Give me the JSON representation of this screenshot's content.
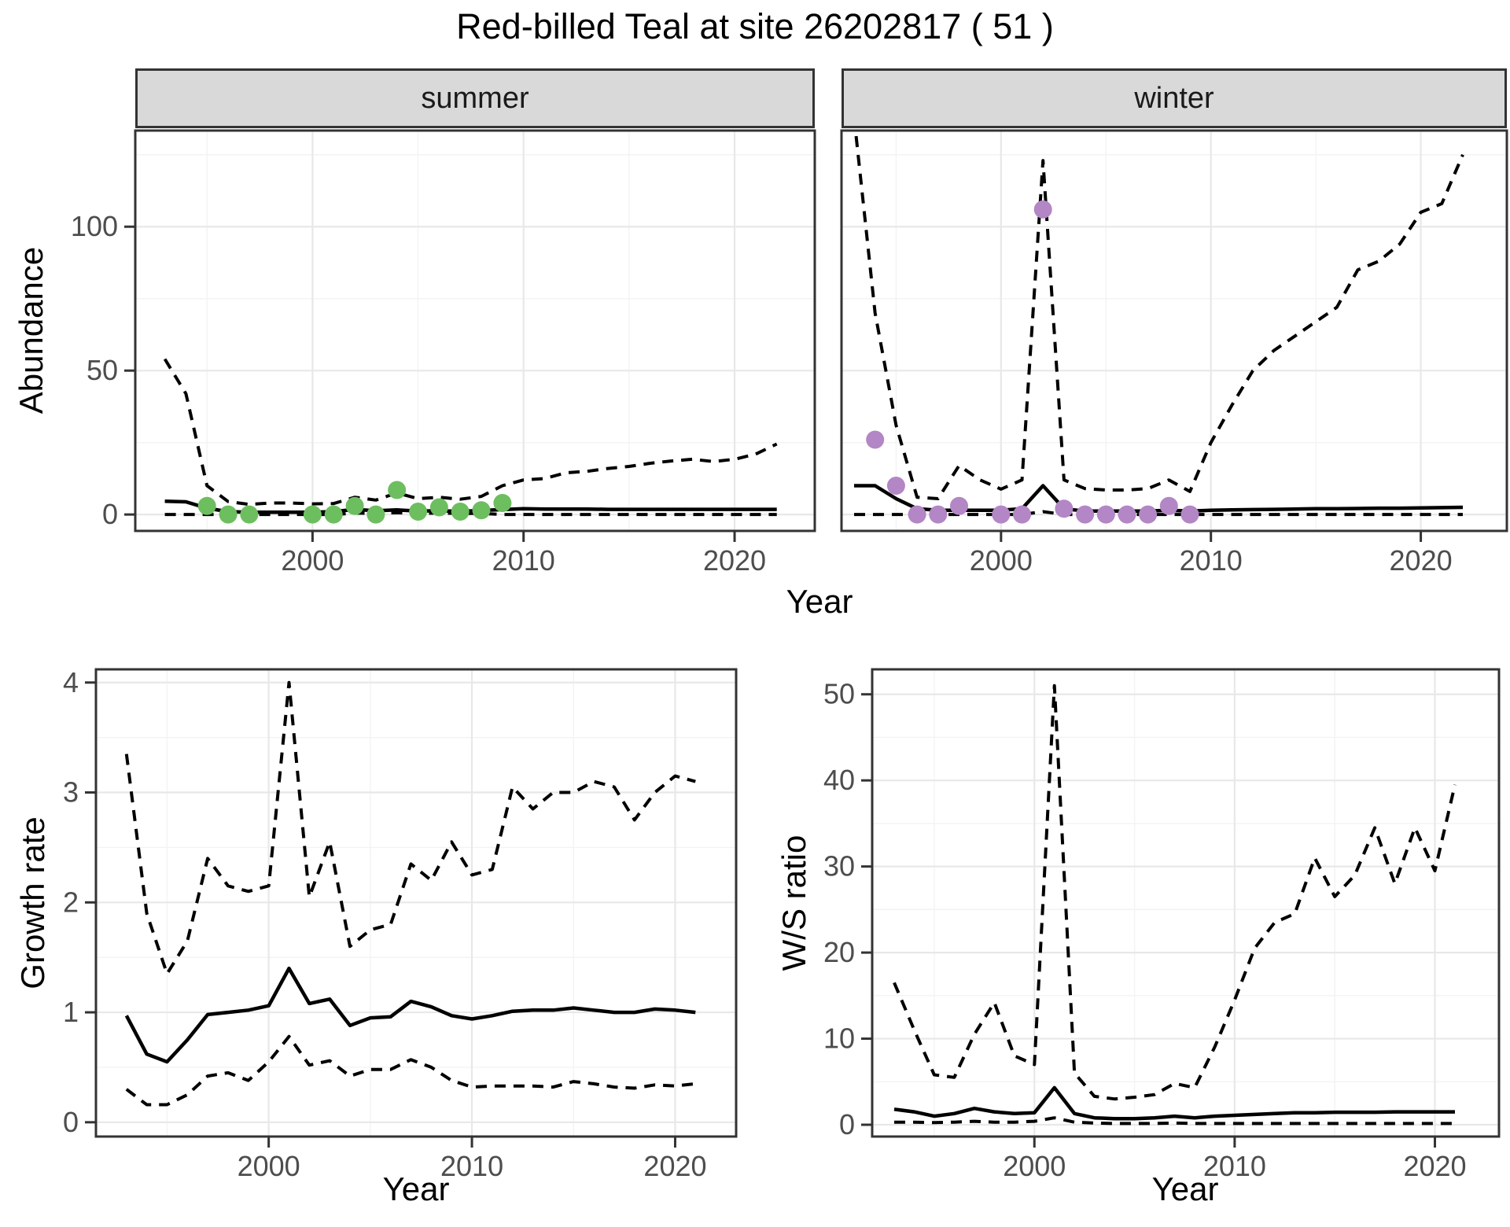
{
  "title": "Red-billed Teal at site 26202817 ( 51 )",
  "colors": {
    "summer_points": "#6dbe5f",
    "winter_points": "#b386c5",
    "line": "#000000",
    "strip_bg": "#d9d9d9",
    "strip_text": "#1a1a1a",
    "panel_border": "#333333",
    "grid_major": "#e8e8e8",
    "grid_minor": "#f3f3f3",
    "tick_text": "#4d4d4d",
    "background": "#ffffff"
  },
  "chart_data": [
    {
      "id": "abundance_summer",
      "type": "line",
      "facet": "summer",
      "xlabel": "Year",
      "ylabel": "Abundance",
      "xlim": [
        1991.6,
        2023.8
      ],
      "ylim": [
        -5.7,
        133.4
      ],
      "xticks": [
        2000,
        2010,
        2020
      ],
      "xticks_minor": [
        1995,
        2005,
        2015
      ],
      "yticks": [
        0,
        50,
        100
      ],
      "yticks_minor": [
        25,
        75,
        125
      ],
      "grid": true,
      "show_y_tick_labels": true,
      "series": [
        {
          "name": "upper_ci",
          "style": "dashed",
          "x": [
            1993,
            1994,
            1995,
            1996,
            1997,
            1998,
            1999,
            2000,
            2001,
            2002,
            2003,
            2004,
            2005,
            2006,
            2007,
            2008,
            2009,
            2010,
            2011,
            2012,
            2013,
            2014,
            2015,
            2016,
            2017,
            2018,
            2019,
            2020,
            2021,
            2022
          ],
          "y": [
            54,
            42,
            10,
            4.5,
            3.5,
            4,
            4,
            3.7,
            3.8,
            6,
            5,
            7.5,
            5.5,
            6,
            5.3,
            6.3,
            10,
            12,
            12.5,
            14.5,
            15,
            16,
            16.7,
            17.8,
            18.6,
            19.2,
            18.4,
            19.2,
            21,
            24.5
          ]
        },
        {
          "name": "median",
          "style": "solid",
          "x": [
            1993,
            1994,
            1995,
            1996,
            1997,
            1998,
            1999,
            2000,
            2001,
            2002,
            2003,
            2004,
            2005,
            2006,
            2007,
            2008,
            2009,
            2010,
            2011,
            2012,
            2013,
            2014,
            2015,
            2016,
            2017,
            2018,
            2019,
            2020,
            2021,
            2022
          ],
          "y": [
            4.6,
            4.4,
            2.2,
            1,
            0.8,
            0.8,
            0.8,
            0.8,
            1,
            1.8,
            1.3,
            1.6,
            1.2,
            1.3,
            1.1,
            1.4,
            1.7,
            2,
            1.9,
            1.9,
            1.9,
            1.8,
            1.8,
            1.8,
            1.8,
            1.8,
            1.8,
            1.8,
            1.8,
            1.8
          ]
        },
        {
          "name": "lower_ci",
          "style": "dashed",
          "x": [
            1993,
            1994,
            1995,
            1996,
            1997,
            1998,
            1999,
            2000,
            2001,
            2002,
            2003,
            2004,
            2005,
            2006,
            2007,
            2008,
            2009,
            2010,
            2011,
            2012,
            2013,
            2014,
            2015,
            2016,
            2017,
            2018,
            2019,
            2020,
            2021,
            2022
          ],
          "y": [
            0,
            0,
            0,
            0,
            0,
            0,
            0,
            0,
            0,
            0.5,
            0.4,
            0.6,
            0.4,
            0.5,
            0.4,
            0.4,
            0,
            0,
            0,
            0,
            0,
            0,
            0,
            0,
            0,
            0,
            0,
            0,
            0,
            0
          ]
        },
        {
          "name": "observed_counts",
          "style": "points",
          "color": "#6dbe5f",
          "x": [
            1995,
            1996,
            1997,
            2000,
            2001,
            2002,
            2003,
            2004,
            2005,
            2006,
            2007,
            2008,
            2009
          ],
          "y": [
            3,
            0,
            0,
            0,
            0,
            3,
            0,
            8.5,
            1,
            2.5,
            1,
            1.5,
            4
          ]
        }
      ]
    },
    {
      "id": "abundance_winter",
      "type": "line",
      "facet": "winter",
      "xlabel": "Year",
      "ylabel": "Abundance",
      "xlim": [
        1992.4,
        2024.1
      ],
      "ylim": [
        -5.7,
        133.4
      ],
      "xticks": [
        2000,
        2010,
        2020
      ],
      "xticks_minor": [
        1995,
        2005,
        2015
      ],
      "yticks": [
        0,
        50,
        100
      ],
      "yticks_minor": [
        25,
        75,
        125
      ],
      "grid": true,
      "show_y_tick_labels": false,
      "series": [
        {
          "name": "upper_ci",
          "style": "dashed",
          "x": [
            1993,
            1994,
            1995,
            1996,
            1997,
            1998,
            1999,
            2000,
            2001,
            2002,
            2003,
            2004,
            2005,
            2006,
            2007,
            2008,
            2009,
            2010,
            2011,
            2012,
            2013,
            2014,
            2015,
            2016,
            2017,
            2018,
            2019,
            2020,
            2021,
            2022
          ],
          "y": [
            138,
            70,
            31,
            6,
            5.5,
            17,
            12,
            8.8,
            12,
            123,
            12,
            9,
            8.5,
            8.5,
            9,
            12,
            8,
            25,
            38,
            50,
            57,
            62,
            67,
            72,
            85,
            88,
            94,
            105,
            108,
            125
          ]
        },
        {
          "name": "median",
          "style": "solid",
          "x": [
            1993,
            1994,
            1995,
            1996,
            1997,
            1998,
            1999,
            2000,
            2001,
            2002,
            2003,
            2004,
            2005,
            2006,
            2007,
            2008,
            2009,
            2010,
            2011,
            2012,
            2013,
            2014,
            2015,
            2016,
            2017,
            2018,
            2019,
            2020,
            2021,
            2022
          ],
          "y": [
            10,
            10,
            5.5,
            2,
            1.5,
            1.5,
            1.5,
            1.5,
            2,
            10,
            2,
            1.2,
            1.2,
            1.2,
            1.2,
            1.5,
            1.2,
            1.5,
            1.6,
            1.7,
            1.8,
            1.9,
            2,
            2,
            2.1,
            2.2,
            2.2,
            2.3,
            2.4,
            2.5
          ]
        },
        {
          "name": "lower_ci",
          "style": "dashed",
          "x": [
            1993,
            1994,
            1995,
            1996,
            1997,
            1998,
            1999,
            2000,
            2001,
            2002,
            2003,
            2004,
            2005,
            2006,
            2007,
            2008,
            2009,
            2010,
            2011,
            2012,
            2013,
            2014,
            2015,
            2016,
            2017,
            2018,
            2019,
            2020,
            2021,
            2022
          ],
          "y": [
            0,
            0,
            0,
            0,
            0,
            0,
            0,
            0,
            0,
            1,
            0,
            0,
            0,
            0,
            0,
            0,
            0,
            0,
            0,
            0,
            0,
            0,
            0,
            0,
            0,
            0,
            0,
            0,
            0,
            0
          ]
        },
        {
          "name": "observed_counts",
          "style": "points",
          "color": "#b386c5",
          "x": [
            1994,
            1995,
            1996,
            1997,
            1998,
            2000,
            2001,
            2002,
            2003,
            2004,
            2005,
            2006,
            2007,
            2008,
            2009
          ],
          "y": [
            26,
            10,
            0,
            0,
            3,
            0,
            0,
            106,
            2,
            0,
            0,
            0,
            0,
            3,
            0
          ]
        }
      ]
    },
    {
      "id": "growth_rate",
      "type": "line",
      "facet": "",
      "xlabel": "Year",
      "ylabel": "Growth rate",
      "xlim": [
        1991.5,
        2023.0
      ],
      "ylim": [
        -0.13,
        4.12
      ],
      "xticks": [
        2000,
        2010,
        2020
      ],
      "xticks_minor": [
        1995,
        2005,
        2015
      ],
      "yticks": [
        0,
        1,
        2,
        3,
        4
      ],
      "yticks_minor": [
        0.5,
        1.5,
        2.5,
        3.5
      ],
      "grid": true,
      "show_y_tick_labels": true,
      "series": [
        {
          "name": "upper_ci",
          "style": "dashed",
          "x": [
            1993,
            1994,
            1995,
            1996,
            1997,
            1998,
            1999,
            2000,
            2001,
            2002,
            2003,
            2004,
            2005,
            2006,
            2007,
            2008,
            2009,
            2010,
            2011,
            2012,
            2013,
            2014,
            2015,
            2016,
            2017,
            2018,
            2019,
            2020,
            2021
          ],
          "y": [
            3.35,
            1.9,
            1.35,
            1.65,
            2.4,
            2.15,
            2.1,
            2.15,
            4.0,
            2.05,
            2.55,
            1.6,
            1.75,
            1.8,
            2.35,
            2.2,
            2.55,
            2.25,
            2.3,
            3.05,
            2.85,
            3.0,
            3.0,
            3.1,
            3.05,
            2.75,
            3.0,
            3.15,
            3.1
          ]
        },
        {
          "name": "median",
          "style": "solid",
          "x": [
            1993,
            1994,
            1995,
            1996,
            1997,
            1998,
            1999,
            2000,
            2001,
            2002,
            2003,
            2004,
            2005,
            2006,
            2007,
            2008,
            2009,
            2010,
            2011,
            2012,
            2013,
            2014,
            2015,
            2016,
            2017,
            2018,
            2019,
            2020,
            2021
          ],
          "y": [
            0.97,
            0.62,
            0.55,
            0.75,
            0.98,
            1.0,
            1.02,
            1.06,
            1.4,
            1.08,
            1.12,
            0.88,
            0.95,
            0.96,
            1.1,
            1.05,
            0.97,
            0.94,
            0.97,
            1.01,
            1.02,
            1.02,
            1.04,
            1.02,
            1.0,
            1.0,
            1.03,
            1.02,
            1.0
          ]
        },
        {
          "name": "lower_ci",
          "style": "dashed",
          "x": [
            1993,
            1994,
            1995,
            1996,
            1997,
            1998,
            1999,
            2000,
            2001,
            2002,
            2003,
            2004,
            2005,
            2006,
            2007,
            2008,
            2009,
            2010,
            2011,
            2012,
            2013,
            2014,
            2015,
            2016,
            2017,
            2018,
            2019,
            2020,
            2021
          ],
          "y": [
            0.3,
            0.16,
            0.16,
            0.25,
            0.42,
            0.45,
            0.38,
            0.55,
            0.78,
            0.52,
            0.56,
            0.42,
            0.48,
            0.48,
            0.57,
            0.5,
            0.38,
            0.32,
            0.33,
            0.33,
            0.33,
            0.32,
            0.37,
            0.35,
            0.32,
            0.31,
            0.34,
            0.33,
            0.35
          ]
        }
      ]
    },
    {
      "id": "ws_ratio",
      "type": "line",
      "facet": "",
      "xlabel": "Year",
      "ylabel": "W/S ratio",
      "xlim": [
        1991.9,
        2023.2
      ],
      "ylim": [
        -1.37,
        52.9
      ],
      "xticks": [
        2000,
        2010,
        2020
      ],
      "xticks_minor": [
        1995,
        2005,
        2015
      ],
      "yticks": [
        0,
        10,
        20,
        30,
        40,
        50
      ],
      "yticks_minor": [
        5,
        15,
        25,
        35,
        45
      ],
      "grid": true,
      "show_y_tick_labels": true,
      "series": [
        {
          "name": "upper_ci",
          "style": "dashed",
          "x": [
            1993,
            1994,
            1995,
            1996,
            1997,
            1998,
            1999,
            2000,
            2001,
            2002,
            2003,
            2004,
            2005,
            2006,
            2007,
            2008,
            2009,
            2010,
            2011,
            2012,
            2013,
            2014,
            2015,
            2016,
            2017,
            2018,
            2019,
            2020,
            2021
          ],
          "y": [
            16.5,
            11,
            5.8,
            5.5,
            10.5,
            14.2,
            8,
            7,
            51,
            6,
            3.3,
            3,
            3.2,
            3.5,
            4.8,
            4.3,
            9,
            14.5,
            20.5,
            23.5,
            24.5,
            31,
            26.5,
            29,
            34.5,
            28,
            34.5,
            29.5,
            39.5
          ]
        },
        {
          "name": "median",
          "style": "solid",
          "x": [
            1993,
            1994,
            1995,
            1996,
            1997,
            1998,
            1999,
            2000,
            2001,
            2002,
            2003,
            2004,
            2005,
            2006,
            2007,
            2008,
            2009,
            2010,
            2011,
            2012,
            2013,
            2014,
            2015,
            2016,
            2017,
            2018,
            2019,
            2020,
            2021
          ],
          "y": [
            1.8,
            1.5,
            1.0,
            1.3,
            1.9,
            1.5,
            1.3,
            1.4,
            4.3,
            1.3,
            0.8,
            0.7,
            0.7,
            0.8,
            1.0,
            0.8,
            1.0,
            1.1,
            1.2,
            1.3,
            1.4,
            1.4,
            1.45,
            1.45,
            1.45,
            1.5,
            1.5,
            1.5,
            1.5
          ]
        },
        {
          "name": "lower_ci",
          "style": "dashed",
          "x": [
            1993,
            1994,
            1995,
            1996,
            1997,
            1998,
            1999,
            2000,
            2001,
            2002,
            2003,
            2004,
            2005,
            2006,
            2007,
            2008,
            2009,
            2010,
            2011,
            2012,
            2013,
            2014,
            2015,
            2016,
            2017,
            2018,
            2019,
            2020,
            2021
          ],
          "y": [
            0.3,
            0.3,
            0.25,
            0.3,
            0.4,
            0.3,
            0.3,
            0.4,
            0.8,
            0.3,
            0.2,
            0.15,
            0.15,
            0.15,
            0.2,
            0.15,
            0.15,
            0.15,
            0.15,
            0.15,
            0.15,
            0.15,
            0.15,
            0.15,
            0.15,
            0.15,
            0.15,
            0.15,
            0.15
          ]
        }
      ]
    }
  ]
}
